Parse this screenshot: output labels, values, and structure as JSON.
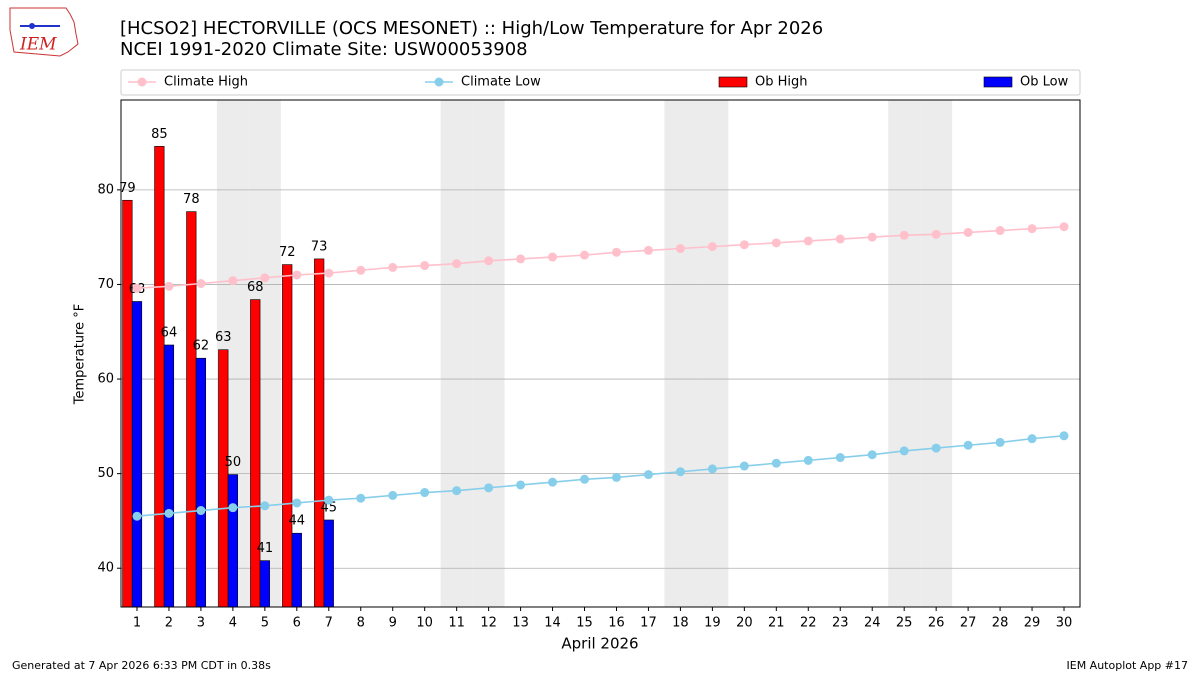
{
  "chart_data": {
    "type": "bar",
    "title": "[HCSO2] HECTORVILLE (OCS MESONET) :: High/Low Temperature for Apr 2026",
    "subtitle": "NCEI 1991-2020 Climate Site: USW00053908",
    "x_label": "April 2026",
    "y_label": "Temperature °F",
    "footer_left": "Generated at 7 Apr 2026 6:33 PM CDT in 0.38s",
    "footer_right": "IEM Autoplot App #17",
    "logo_text": "IEM",
    "x": [
      1,
      2,
      3,
      4,
      5,
      6,
      7,
      8,
      9,
      10,
      11,
      12,
      13,
      14,
      15,
      16,
      17,
      18,
      19,
      20,
      21,
      22,
      23,
      24,
      25,
      26,
      27,
      28,
      29,
      30
    ],
    "xlim": [
      0.5,
      30.5
    ],
    "xticks": [
      1,
      2,
      3,
      4,
      5,
      6,
      7,
      8,
      9,
      10,
      11,
      12,
      13,
      14,
      15,
      16,
      17,
      18,
      19,
      20,
      21,
      22,
      23,
      24,
      25,
      26,
      27,
      28,
      29,
      30
    ],
    "ylim": [
      35.9,
      89.5
    ],
    "yticks": [
      40,
      50,
      60,
      70,
      80
    ],
    "grid": true,
    "shaded_days": [
      4,
      5,
      11,
      12,
      18,
      19,
      25,
      26
    ],
    "shade_color": "#ececec",
    "legend": "top",
    "series": [
      {
        "name": "Climate High",
        "kind": "line",
        "color": "#ffc0cb",
        "values": [
          69.6,
          69.8,
          70.1,
          70.4,
          70.7,
          71.0,
          71.2,
          71.5,
          71.8,
          72.0,
          72.2,
          72.5,
          72.7,
          72.9,
          73.1,
          73.4,
          73.6,
          73.8,
          74.0,
          74.2,
          74.4,
          74.6,
          74.8,
          75.0,
          75.2,
          75.3,
          75.5,
          75.7,
          75.9,
          76.1
        ]
      },
      {
        "name": "Climate Low",
        "kind": "line",
        "color": "#87ceeb",
        "values": [
          45.5,
          45.8,
          46.1,
          46.4,
          46.6,
          46.9,
          47.2,
          47.4,
          47.7,
          48.0,
          48.2,
          48.5,
          48.8,
          49.1,
          49.4,
          49.6,
          49.9,
          50.2,
          50.5,
          50.8,
          51.1,
          51.4,
          51.7,
          52.0,
          52.4,
          52.7,
          53.0,
          53.3,
          53.7,
          54.0
        ]
      },
      {
        "name": "Ob High",
        "kind": "bar",
        "color": "#ff0000",
        "offset": -0.3,
        "values": [
          78.9,
          84.6,
          77.7,
          63.1,
          68.4,
          72.1,
          72.7,
          null,
          null,
          null,
          null,
          null,
          null,
          null,
          null,
          null,
          null,
          null,
          null,
          null,
          null,
          null,
          null,
          null,
          null,
          null,
          null,
          null,
          null,
          null
        ],
        "value_labels": [
          "79",
          "85",
          "78",
          "63",
          "68",
          "72",
          "73",
          null,
          null,
          null,
          null,
          null,
          null,
          null,
          null,
          null,
          null,
          null,
          null,
          null,
          null,
          null,
          null,
          null,
          null,
          null,
          null,
          null,
          null,
          null
        ]
      },
      {
        "name": "Ob Low",
        "kind": "bar",
        "color": "#0000ff",
        "offset": 0,
        "values": [
          68.2,
          63.6,
          62.2,
          49.9,
          40.8,
          43.7,
          45.1,
          null,
          null,
          null,
          null,
          null,
          null,
          null,
          null,
          null,
          null,
          null,
          null,
          null,
          null,
          null,
          null,
          null,
          null,
          null,
          null,
          null,
          null,
          null
        ],
        "value_labels": [
          "68",
          "64",
          "62",
          "50",
          "41",
          "44",
          "45",
          null,
          null,
          null,
          null,
          null,
          null,
          null,
          null,
          null,
          null,
          null,
          null,
          null,
          null,
          null,
          null,
          null,
          null,
          null,
          null,
          null,
          null,
          null
        ]
      }
    ]
  }
}
